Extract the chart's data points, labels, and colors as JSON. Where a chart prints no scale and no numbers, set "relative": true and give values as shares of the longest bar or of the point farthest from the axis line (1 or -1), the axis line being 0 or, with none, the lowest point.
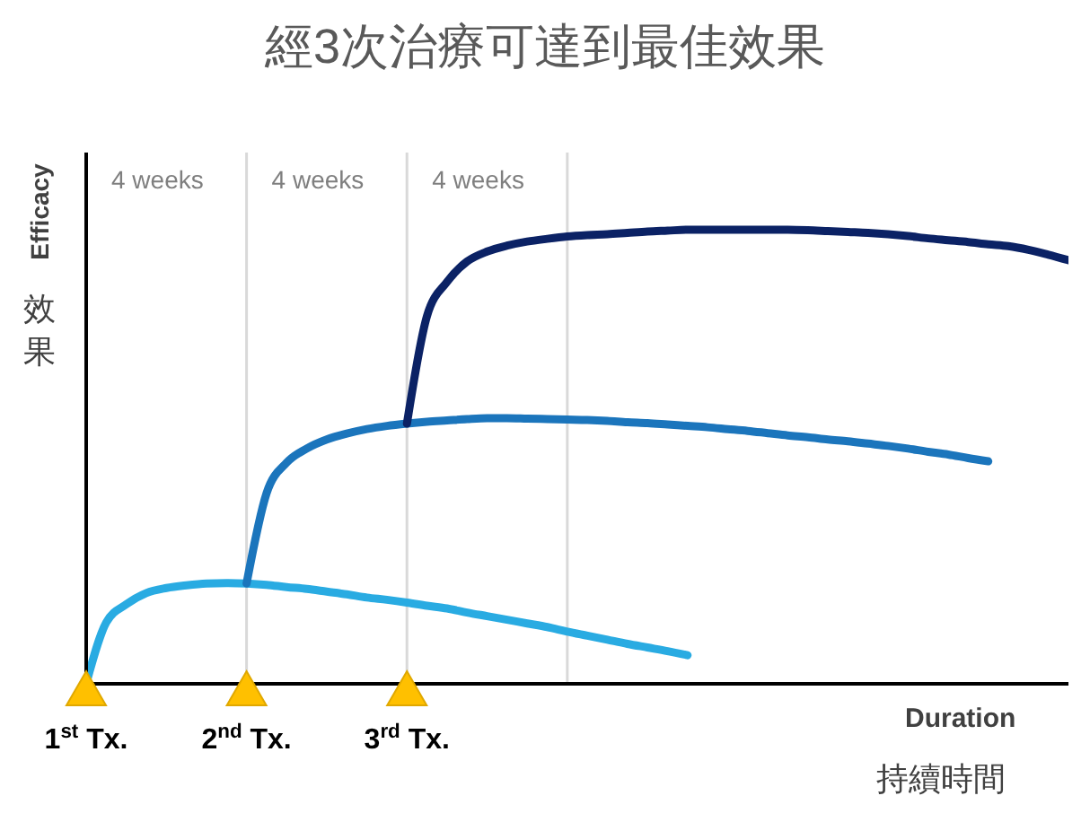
{
  "chart_data": {
    "type": "line",
    "title": "經3次治療可達到最佳效果",
    "xlabel": "Duration",
    "ylabel": "Efficacy",
    "annotations": [
      "效果",
      "持續時間",
      "4 weeks",
      "4 weeks",
      "4 weeks"
    ],
    "relative": true,
    "grid": "x",
    "marker": "none",
    "line_style": "solid",
    "categories": [
      "1$^{st}$ Tx.",
      null,
      null,
      null,
      null,
      null,
      null,
      null,
      "2$^{nd}$ Tx.",
      null,
      null,
      null,
      null,
      null,
      null,
      null,
      "3$^{rd}$ Tx.",
      null,
      null,
      null,
      null,
      null,
      null,
      null,
      null,
      null,
      null,
      null,
      null,
      null,
      null,
      null,
      null,
      null,
      null,
      null,
      null,
      null,
      null,
      null,
      null,
      null,
      null,
      null,
      null,
      null,
      null,
      null,
      null,
      null
    ],
    "series": [
      {
        "color": "#29abe2",
        "values": [
          0,
          0.135,
          0.175,
          0.2,
          0.211,
          0.217,
          0.221,
          0.222,
          0.221,
          0.218,
          0.213,
          0.209,
          0.203,
          0.197,
          0.19,
          0.185,
          0.179,
          0.172,
          0.166,
          0.157,
          0.149,
          0.141,
          0.133,
          0.125,
          0.115,
          0.106,
          0.097,
          0.088,
          0.08,
          0.072,
          0.063,
          null,
          null,
          null,
          null,
          null,
          null,
          null,
          null,
          null,
          null,
          null,
          null,
          null,
          null,
          null,
          null,
          null,
          null,
          null
        ]
      },
      {
        "color": "#1b75bc",
        "values": [
          null,
          null,
          null,
          null,
          null,
          null,
          null,
          null,
          0.221,
          0.42,
          0.487,
          0.518,
          0.538,
          0.551,
          0.561,
          0.568,
          0.573,
          0.577,
          0.58,
          0.583,
          0.585,
          0.585,
          0.584,
          0.583,
          0.582,
          0.581,
          0.579,
          0.576,
          0.574,
          0.571,
          0.568,
          0.565,
          0.561,
          0.557,
          0.552,
          0.547,
          0.543,
          0.538,
          0.534,
          0.529,
          0.524,
          0.518,
          0.511,
          0.505,
          0.497,
          0.49,
          null,
          null,
          null,
          null
        ]
      },
      {
        "color": "#0b2265",
        "values": [
          null,
          null,
          null,
          null,
          null,
          null,
          null,
          null,
          null,
          null,
          null,
          null,
          null,
          null,
          null,
          null,
          0.573,
          0.81,
          0.885,
          0.93,
          0.952,
          0.965,
          0.974,
          0.98,
          0.985,
          0.988,
          0.99,
          0.993,
          0.996,
          0.998,
          1,
          1,
          1,
          1,
          1,
          1,
          0.999,
          0.997,
          0.995,
          0.993,
          0.99,
          0.986,
          0.981,
          0.977,
          0.973,
          0.968,
          0.964,
          0.956,
          0.945,
          0.933
        ]
      }
    ]
  }
}
